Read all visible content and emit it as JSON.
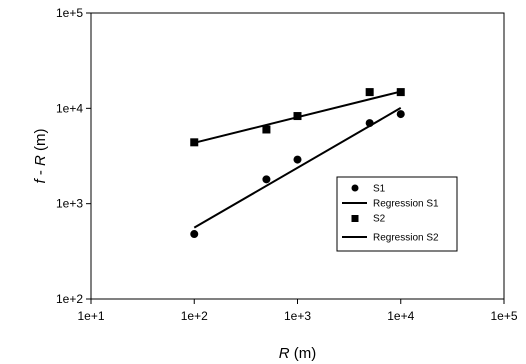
{
  "chart_data": {
    "type": "scatter",
    "x_scale": "log",
    "y_scale": "log",
    "xlim": [
      10,
      100000
    ],
    "ylim": [
      100,
      100000
    ],
    "grid": false,
    "legend_position": "inside-right",
    "x_ticks": [
      "1e+1",
      "1e+2",
      "1e+3",
      "1e+4",
      "1e+5"
    ],
    "y_ticks": [
      "1e+2",
      "1e+3",
      "1e+4",
      "1e+5"
    ],
    "xlabel": {
      "italic": "R",
      "rest": " (m)"
    },
    "ylabel": {
      "italic1": "f",
      "mid": " - ",
      "italic2": "R",
      "rest": " (m)"
    },
    "series": [
      {
        "name": "S1",
        "marker": "circle",
        "x": [
          100,
          500,
          1000,
          5000,
          10000
        ],
        "y": [
          480,
          1800,
          2900,
          7000,
          8700
        ]
      },
      {
        "name": "Regression S1",
        "kind": "line",
        "x": [
          100,
          10000
        ],
        "y": [
          560,
          10100
        ]
      },
      {
        "name": "S2",
        "marker": "square",
        "x": [
          100,
          500,
          1000,
          5000,
          10000
        ],
        "y": [
          4400,
          6000,
          8300,
          14800,
          14800
        ]
      },
      {
        "name": "Regression S2",
        "kind": "line",
        "x": [
          100,
          10000
        ],
        "y": [
          4350,
          15000
        ]
      }
    ],
    "colors": {
      "marks": "#000000",
      "background": "#ffffff"
    }
  }
}
